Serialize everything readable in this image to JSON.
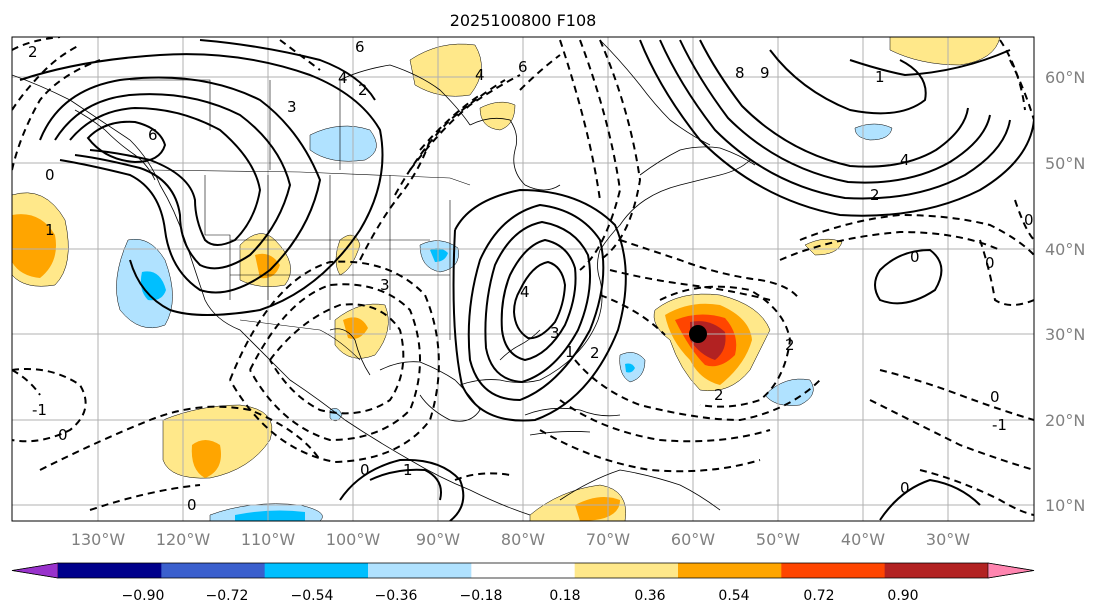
{
  "title": "2025100800 F108",
  "map": {
    "lat_labels": [
      "60°N",
      "50°N",
      "40°N",
      "30°N",
      "20°N",
      "10°N"
    ],
    "lon_labels": [
      "130°W",
      "120°W",
      "110°W",
      "100°W",
      "90°W",
      "80°W",
      "70°W",
      "60°W",
      "50°W",
      "40°W",
      "30°W"
    ],
    "contour_labels": [
      "2",
      "6",
      "4",
      "3",
      "2",
      "4",
      "6",
      "6",
      "8",
      "9",
      "1",
      "4",
      "2",
      "0",
      "0",
      "4",
      "3",
      "2",
      "1",
      "3",
      "-1",
      "0",
      "0",
      "1",
      "0",
      "2",
      "2",
      "0",
      "-1",
      "0",
      "1",
      "0",
      "0"
    ],
    "marker": {
      "lat": 30,
      "lon": -60
    }
  },
  "colorbar": {
    "colors": [
      "#9932cc",
      "#00008b",
      "#3a5fcd",
      "#00bfff",
      "#b0e2ff",
      "#ffffff",
      "#ffe88a",
      "#ffa500",
      "#ff4500",
      "#b22222",
      "#ff85b0"
    ],
    "tick_labels": [
      "−0.90",
      "−0.72",
      "−0.54",
      "−0.36",
      "−0.18",
      "0.18",
      "0.36",
      "0.54",
      "0.72",
      "0.90"
    ]
  }
}
